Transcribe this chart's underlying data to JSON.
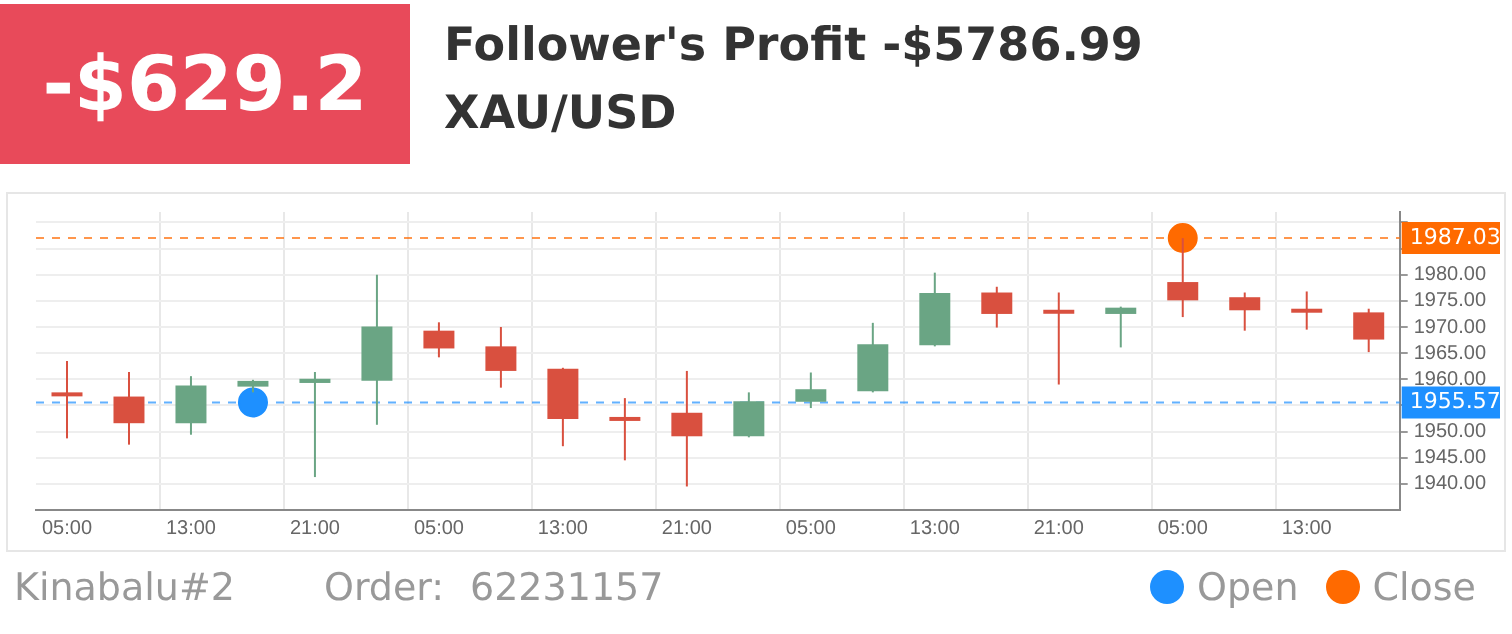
{
  "chart_data": {
    "type": "candlestick",
    "title": "Follower's Profit -$5786.99",
    "subtitle": "XAU/USD",
    "annotations": [
      "-$629.2",
      "Kinabalu#2",
      "Order:",
      "62231157"
    ],
    "categories": [
      "05:00",
      null,
      "13:00",
      null,
      "21:00",
      null,
      "05:00",
      null,
      "13:00",
      null,
      "21:00",
      null,
      "05:00",
      null,
      "13:00",
      null,
      "21:00",
      null,
      "05:00",
      null,
      "13:00",
      null
    ],
    "ohlc": [
      [
        1957.5,
        1963.5,
        1948.7,
        1957
      ],
      [
        1956.7,
        1961.4,
        1947.5,
        1951.6
      ],
      [
        1951.6,
        1960.6,
        1949.4,
        1958.8
      ],
      [
        1958.6,
        1959.9,
        1957.5,
        1959.7
      ],
      [
        1959.3,
        1961.4,
        1941.3,
        1960.1
      ],
      [
        1959.7,
        1980,
        1951.3,
        1970.1
      ],
      [
        1969.3,
        1970.9,
        1964.2,
        1965.9
      ],
      [
        1966.3,
        1970,
        1958.4,
        1961.6
      ],
      [
        1962,
        1962.2,
        1947.2,
        1952.4
      ],
      [
        1952.8,
        1956.4,
        1944.5,
        1952.4
      ],
      [
        1953.6,
        1961.6,
        1939.5,
        1949.1
      ],
      [
        1949.1,
        1957.5,
        1948.9,
        1955.8
      ],
      [
        1955.7,
        1961.3,
        1954.5,
        1958.1
      ],
      [
        1957.7,
        1970.8,
        1957.5,
        1966.7
      ],
      [
        1966.5,
        1980.4,
        1966.3,
        1976.5
      ],
      [
        1976.6,
        1977.7,
        1969.9,
        1972.5
      ],
      [
        1973.3,
        1976.6,
        1959,
        1972.7
      ],
      [
        1972.5,
        1973.9,
        1966.1,
        1973.7
      ],
      [
        1978.6,
        1987,
        1971.9,
        1975.1
      ],
      [
        1975.7,
        1976.6,
        1969.3,
        1973.2
      ],
      [
        1973.5,
        1976.8,
        1969.5,
        1973.2
      ],
      [
        1972.8,
        1973.5,
        1965.2,
        1967.6
      ]
    ],
    "series": [
      {
        "type": "scatter",
        "name": "Open",
        "color": "#1e90ff",
        "values": [
          null,
          null,
          null,
          1955.57,
          null,
          null,
          null,
          null,
          null,
          null,
          null,
          null,
          null,
          null,
          null,
          null,
          null,
          null,
          null,
          null,
          null,
          null
        ]
      },
      {
        "type": "scatter",
        "name": "Close",
        "color": "#ff6a00",
        "values": [
          null,
          null,
          null,
          null,
          null,
          null,
          null,
          null,
          null,
          null,
          null,
          null,
          null,
          null,
          null,
          null,
          null,
          null,
          1987.03,
          null,
          null,
          null
        ]
      }
    ],
    "marker": "circle",
    "ref_lines": [
      {
        "axis": "y",
        "value": 1955.57,
        "label": "1955.57",
        "color": "#1e90ff",
        "line_style": "dashed"
      },
      {
        "axis": "y",
        "value": 1987.03,
        "label": "1987.03",
        "color": "#ff6a00",
        "line_style": "dashed"
      }
    ],
    "ylim": [
      1935,
      1992
    ],
    "yticks": [
      {
        "value": 1940,
        "label": "1940.00"
      },
      {
        "value": 1945,
        "label": "1945.00"
      },
      {
        "value": 1950,
        "label": "1950.00"
      },
      {
        "value": 1955,
        "label": null
      },
      {
        "value": 1960,
        "label": "1960.00"
      },
      {
        "value": 1965,
        "label": "1965.00"
      },
      {
        "value": 1970,
        "label": "1970.00"
      },
      {
        "value": 1975,
        "label": "1975.00"
      },
      {
        "value": 1980,
        "label": "1980.00"
      },
      {
        "value": 1985,
        "label": null
      },
      {
        "value": 1990,
        "label": null
      }
    ],
    "grid": true,
    "legend": "bottom right"
  }
}
